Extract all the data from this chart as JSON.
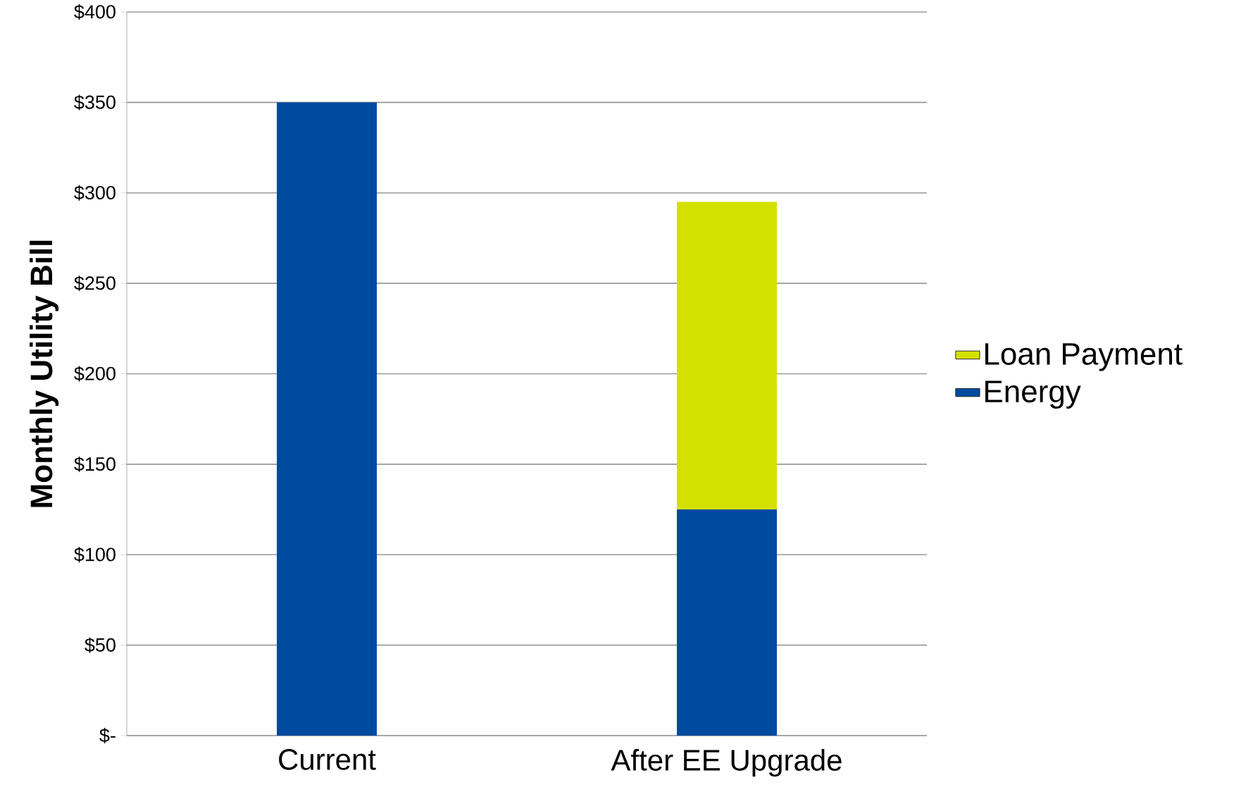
{
  "chart_data": {
    "type": "bar",
    "stacked": true,
    "ylabel": "Monthly Utility Bill",
    "categories": [
      "Current",
      "After EE Upgrade"
    ],
    "series": [
      {
        "name": "Energy",
        "color": "#004a9f",
        "values": [
          350,
          125
        ]
      },
      {
        "name": "Loan Payment",
        "color": "#d4e100",
        "values": [
          null,
          170
        ]
      }
    ],
    "ylim": [
      0,
      400
    ],
    "yticks": [
      {
        "value": 0,
        "label": "$-"
      },
      {
        "value": 50,
        "label": "$50"
      },
      {
        "value": 100,
        "label": "$100"
      },
      {
        "value": 150,
        "label": "$150"
      },
      {
        "value": 200,
        "label": "$200"
      },
      {
        "value": 250,
        "label": "$250"
      },
      {
        "value": 300,
        "label": "$300"
      },
      {
        "value": 350,
        "label": "$350"
      },
      {
        "value": 400,
        "label": "$400"
      }
    ],
    "grid": "y",
    "legend": "right"
  }
}
